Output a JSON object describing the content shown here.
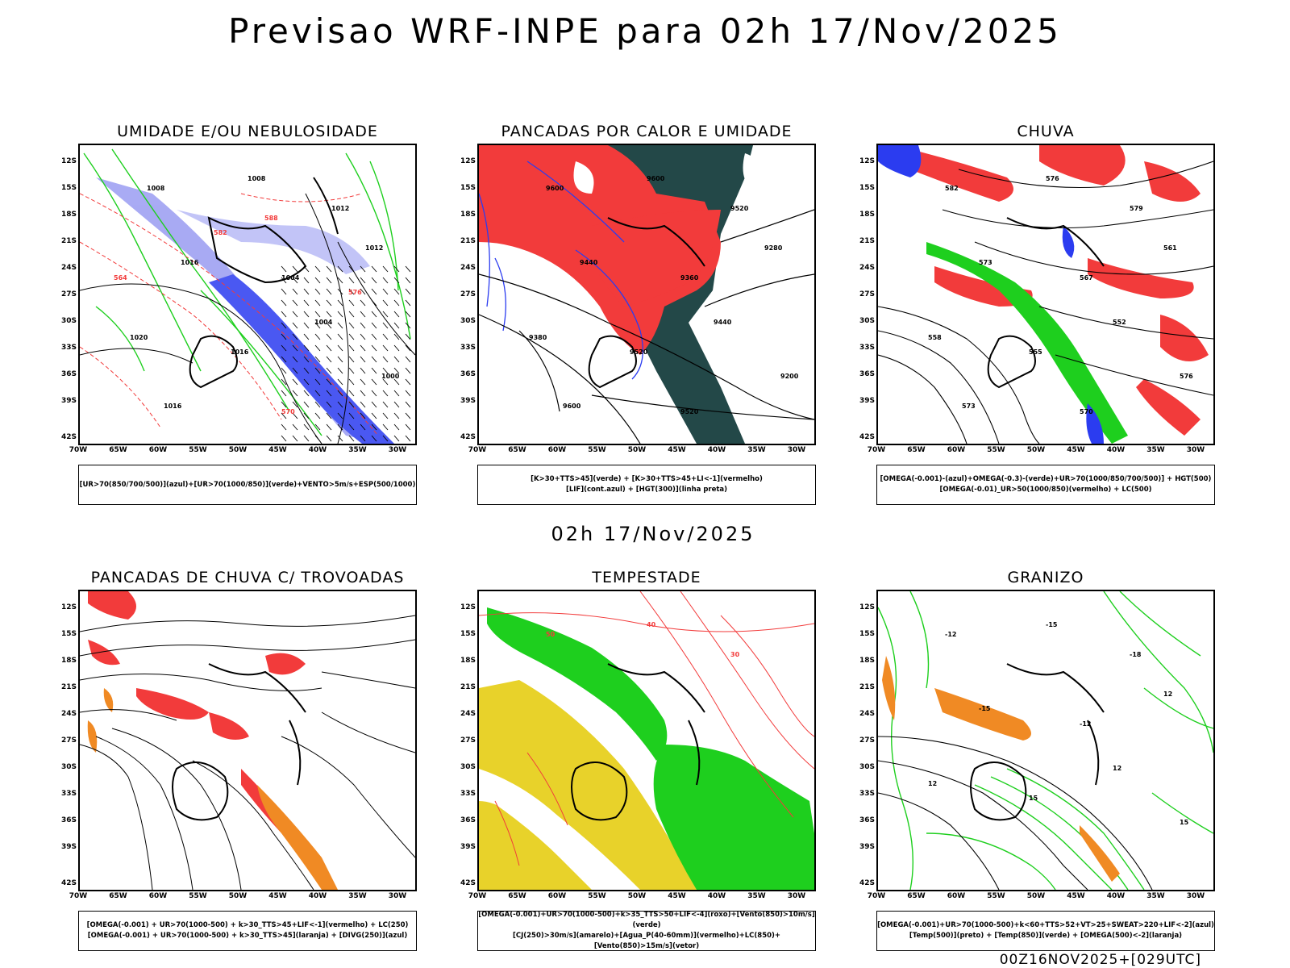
{
  "header": {
    "title": "Previsao WRF-INPE  para 02h 17/Nov/2025",
    "mid_time": "02h 17/Nov/2025",
    "footer": "00Z16NOV2025+[029UTC]"
  },
  "axes": {
    "lat_labels": [
      "12S",
      "15S",
      "18S",
      "21S",
      "24S",
      "27S",
      "30S",
      "33S",
      "36S",
      "39S",
      "42S"
    ],
    "lon_labels": [
      "70W",
      "65W",
      "60W",
      "55W",
      "50W",
      "45W",
      "40W",
      "35W",
      "30W"
    ]
  },
  "colors": {
    "red": "#f23b3b",
    "green": "#1ecf1e",
    "blue": "#2b3cf0",
    "lightblue": "#9a9cf2",
    "darkteal": "#234848",
    "orange": "#f08a24",
    "yellow": "#e8d22a"
  },
  "panels": [
    {
      "id": "umidade",
      "title": "UMIDADE E/OU NEBULOSIDADE",
      "legend": [
        "[UR>70(850/700/500)](azul)+[UR>70(1000/850)](verde)+VENTO>5m/s+ESP(500/1000)"
      ],
      "contour_labels": [
        "1008",
        "1008",
        "1012",
        "1016",
        "1004",
        "1012",
        "1020",
        "1016",
        "1004",
        "1000",
        "1016",
        "570",
        "576",
        "582",
        "564",
        "588"
      ]
    },
    {
      "id": "pancadas_calor",
      "title": "PANCADAS POR CALOR E UMIDADE",
      "legend": [
        "[K>30+TTS>45](verde) + [K>30+TTS>45+LI<-1](vermelho)",
        "[LIF](cont.azul) + [HGT(300)](linha preta)"
      ],
      "contour_labels": [
        "9600",
        "9600",
        "9520",
        "9440",
        "9360",
        "9280",
        "9380",
        "9520",
        "9440",
        "9200",
        "9600",
        "9520"
      ]
    },
    {
      "id": "chuva",
      "title": "CHUVA",
      "legend": [
        "[OMEGA(-0.001)-(azul)+OMEGA(-0.3)-(verde)+UR>70(1000/850/700/500)] + HGT(500)",
        "[OMEGA(-0.01)_UR>50(1000/850)(vermelho) + LC(500)"
      ],
      "contour_labels": [
        "582",
        "576",
        "579",
        "573",
        "567",
        "561",
        "558",
        "555",
        "552",
        "576",
        "573",
        "570"
      ]
    },
    {
      "id": "pancadas_trovoadas",
      "title": "PANCADAS DE CHUVA C/ TROVOADAS",
      "legend": [
        "[OMEGA(-0.001) + UR>70(1000-500) + k>30_TTS>45+LIF<-1](vermelho) + LC(250)",
        "[OMEGA(-0.001) + UR>70(1000-500) + k>30_TTS>45](laranja) + [DIVG(250)](azul)"
      ],
      "contour_labels": []
    },
    {
      "id": "tempestade",
      "title": "TEMPESTADE",
      "legend": [
        "[OMEGA(-0.001)+UR>70(1000-500)+k>35_TTS>50+LIF<-4](roxo)+[Vento(850)>10m/s](verde)",
        "[CJ(250)>30m/s](amarelo)+[Agua_P(40-60mm)](vermelho)+LC(850)+[Vento(850)>15m/s](vetor)"
      ],
      "contour_labels": [
        "50",
        "40",
        "30"
      ]
    },
    {
      "id": "granizo",
      "title": "GRANIZO",
      "legend": [
        "[OMEGA(-0.001)+UR>70(1000-500)+k<60+TTS>52+VT>25+SWEAT>220+LIF<-2](azul)",
        "[Temp(500)](preto) + [Temp(850)](verde) + [OMEGA(500)<-2](laranja)"
      ],
      "contour_labels": [
        "-12",
        "-15",
        "-18",
        "-15",
        "-12",
        "12",
        "12",
        "15",
        "12",
        "15"
      ]
    }
  ]
}
